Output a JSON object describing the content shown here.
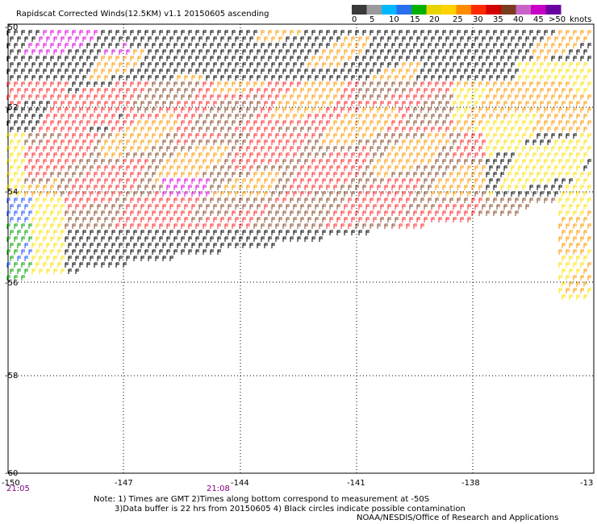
{
  "title": "Rapidscat Corrected Winds(12.5KM) v1.1 20150605 ascending",
  "legend": {
    "ticks": [
      "0",
      "5",
      "10",
      "15",
      "20",
      "25",
      "30",
      "35",
      "40",
      "45",
      ">50",
      "knots"
    ],
    "colors": [
      "#3a3a3a",
      "#9a9a9a",
      "#00b8ff",
      "#2a6ef2",
      "#00b000",
      "#e6d400",
      "#ffd200",
      "#ff8c00",
      "#ff2a00",
      "#d20000",
      "#7a3c1e",
      "#c864c8",
      "#c800c8",
      "#6a00a0"
    ]
  },
  "lat_labels": [
    "-50",
    "-52",
    "-54",
    "-56",
    "-58",
    "-60"
  ],
  "lon_labels": [
    "-150",
    "-147",
    "-144",
    "-141",
    "-138",
    "-13"
  ],
  "time_labels": [
    "21:05",
    "21:08"
  ],
  "footer": {
    "line1": "Note: 1) Times are GMT 2)Times along bottom correspond to measurement at -50S",
    "line2": "3)Data buffer is 22 hrs from 20150605 4) Black circles indicate possible contamination",
    "line3": "NOAA/NESDIS/Office of Research and Applications"
  },
  "wind_color_key": {
    "calm": "#000000",
    "light": "#00a000",
    "light_blue": "#1e50ff",
    "moderate": "#ffe000",
    "fresh": "#ff9900",
    "strong": "#ff2a2a",
    "gale": "#8a4a2a",
    "storm": "#e000e0"
  }
}
